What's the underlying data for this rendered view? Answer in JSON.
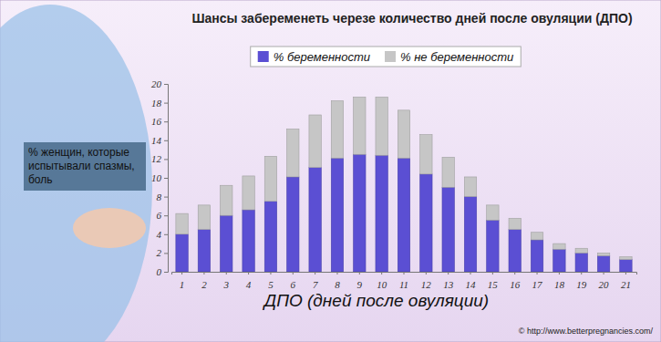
{
  "chart_data": {
    "type": "bar",
    "title": "Шансы забеременеть черезе количество дней после овуляции (ДПО)",
    "xlabel": "ДПО (дней после овуляции)",
    "annotations": [
      "% женщин, которые испытывали спазмы, боль",
      "© http://www.betterpregnancies.com/"
    ],
    "categories": [
      "1",
      "2",
      "3",
      "4",
      "5",
      "6",
      "7",
      "8",
      "9",
      "10",
      "11",
      "12",
      "13",
      "14",
      "15",
      "16",
      "17",
      "18",
      "19",
      "20",
      "21"
    ],
    "series": [
      {
        "name": "% беременности",
        "color": "#5b4fd3",
        "values": [
          4,
          4.5,
          6,
          6.6,
          7.5,
          10.1,
          11.1,
          12.1,
          12.5,
          12.4,
          12.1,
          10.4,
          9,
          8,
          5.5,
          4.5,
          3.4,
          2.4,
          2,
          1.7,
          1.3
        ]
      },
      {
        "name": "% не беременности",
        "color": "#c6c6c6",
        "values": [
          2.2,
          2.6,
          3.2,
          3.6,
          4.8,
          5.1,
          5.6,
          6.1,
          6.1,
          6.2,
          5.1,
          4.2,
          3.2,
          2.1,
          1.6,
          1.2,
          0.8,
          0.6,
          0.5,
          0.3,
          0.3
        ]
      }
    ],
    "stacked": true,
    "ylim": [
      0,
      20
    ],
    "yticks": [
      0,
      2,
      4,
      6,
      8,
      10,
      12,
      14,
      16,
      18,
      20
    ],
    "grid": false,
    "legend": "top"
  }
}
